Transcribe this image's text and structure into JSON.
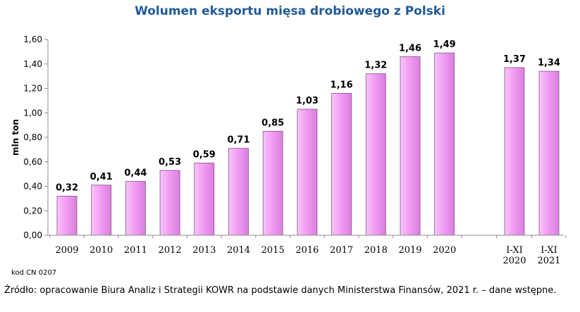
{
  "chart_data": {
    "type": "bar",
    "title": "Wolumen eksportu mięsa drobiowego z Polski",
    "ylabel": "mln ton",
    "xlabel": "",
    "ylim": [
      0,
      1.6
    ],
    "yticks": [
      "0,00",
      "0,20",
      "0,40",
      "0,60",
      "0,80",
      "1,00",
      "1,20",
      "1,40",
      "1,60"
    ],
    "categories": [
      [
        "2009"
      ],
      [
        "2010"
      ],
      [
        "2011"
      ],
      [
        "2012"
      ],
      [
        "2013"
      ],
      [
        "2014"
      ],
      [
        "2015"
      ],
      [
        "2016"
      ],
      [
        "2017"
      ],
      [
        "2018"
      ],
      [
        "2019"
      ],
      [
        "2020"
      ],
      [
        "I-XI",
        "2020"
      ],
      [
        "I-XI",
        "2021"
      ]
    ],
    "values": [
      0.32,
      0.41,
      0.44,
      0.53,
      0.59,
      0.71,
      0.85,
      1.03,
      1.16,
      1.32,
      1.46,
      1.49,
      1.37,
      1.34
    ],
    "value_labels": [
      "0,32",
      "0,41",
      "0,44",
      "0,53",
      "0,59",
      "0,71",
      "0,85",
      "1,03",
      "1,16",
      "1,32",
      "1,46",
      "1,49",
      "1,37",
      "1,34"
    ],
    "bar_color": "#f29cf4",
    "bar_edge_color": "#8a4f8c",
    "grid": false,
    "legend": "none"
  },
  "notes": {
    "code": "kod CN 0207",
    "source": "Źródło: opracowanie Biura Analiz i Strategii KOWR na podstawie danych Ministerstwa Finansów, 2021 r. – dane wstępne."
  }
}
